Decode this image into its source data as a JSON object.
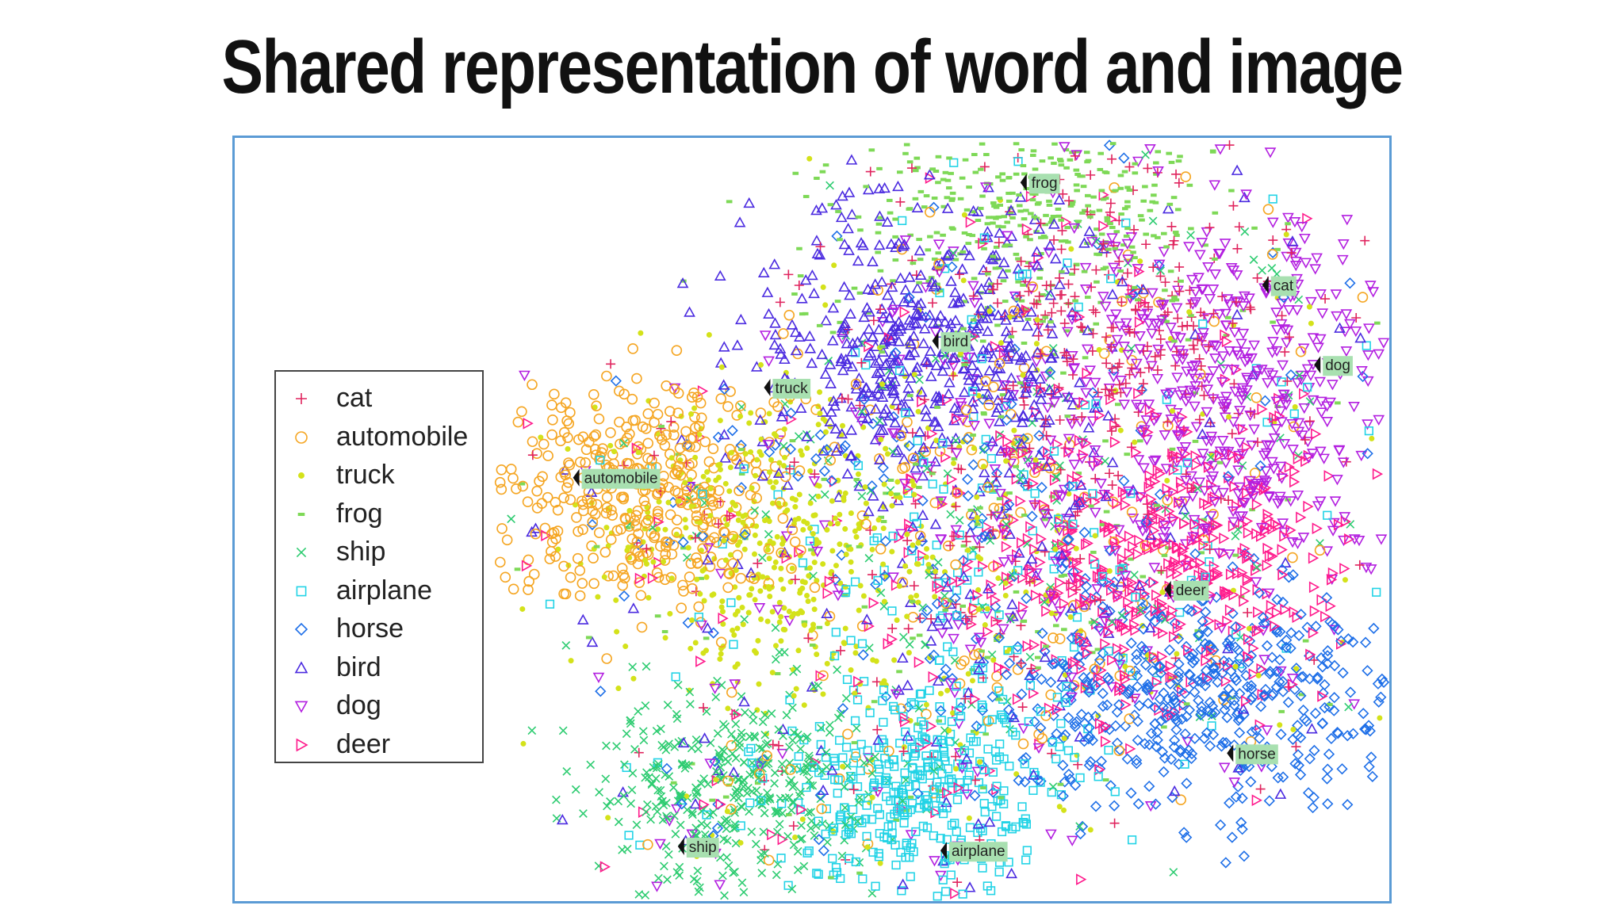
{
  "title": "Shared representation of word and image",
  "chart_data": {
    "type": "scatter",
    "title": "",
    "xlabel": "",
    "ylabel": "",
    "grid": false,
    "legend_position": "left",
    "series": [
      {
        "name": "cat",
        "marker": "plus",
        "color": "#e0245e"
      },
      {
        "name": "automobile",
        "marker": "circle",
        "color": "#f5a623"
      },
      {
        "name": "truck",
        "marker": "dot",
        "color": "#d4e21a"
      },
      {
        "name": "frog",
        "marker": "dash",
        "color": "#7ed957"
      },
      {
        "name": "ship",
        "marker": "x",
        "color": "#2ecc71"
      },
      {
        "name": "airplane",
        "marker": "square",
        "color": "#22d3e6"
      },
      {
        "name": "horse",
        "marker": "diamond",
        "color": "#1e6fe8"
      },
      {
        "name": "bird",
        "marker": "triangle-up",
        "color": "#4b2be0"
      },
      {
        "name": "dog",
        "marker": "triangle-down",
        "color": "#b31fe0"
      },
      {
        "name": "deer",
        "marker": "triangle-right",
        "color": "#ff1a8c"
      }
    ],
    "clusters": [
      {
        "name": "frog",
        "label": "frog",
        "center": [
          985,
          200
        ],
        "spread": [
          95,
          60
        ],
        "n": 520
      },
      {
        "name": "bird",
        "label": "bird",
        "center": [
          880,
          325
        ],
        "spread": [
          80,
          65
        ],
        "n": 520
      },
      {
        "name": "cat",
        "label": "cat",
        "center": [
          1080,
          300
        ],
        "spread": [
          85,
          70
        ],
        "n": 260
      },
      {
        "name": "dog",
        "label": "dog",
        "center": [
          1180,
          380
        ],
        "spread": [
          100,
          90
        ],
        "n": 620
      },
      {
        "name": "deer",
        "label": "deer",
        "center": [
          1120,
          540
        ],
        "spread": [
          90,
          70
        ],
        "n": 520
      },
      {
        "name": "horse",
        "label": "horse",
        "center": [
          1150,
          670
        ],
        "spread": [
          95,
          55
        ],
        "n": 560
      },
      {
        "name": "automobile",
        "label": "automobile",
        "center": [
          620,
          480
        ],
        "spread": [
          70,
          55
        ],
        "n": 480
      },
      {
        "name": "truck",
        "label": "truck",
        "center": [
          740,
          520
        ],
        "spread": [
          80,
          75
        ],
        "n": 520
      },
      {
        "name": "ship",
        "label": "ship",
        "center": [
          700,
          760
        ],
        "spread": [
          70,
          50
        ],
        "n": 480
      },
      {
        "name": "airplane",
        "label": "airplane",
        "center": [
          880,
          760
        ],
        "spread": [
          60,
          55
        ],
        "n": 440
      }
    ],
    "mixed_region": {
      "center": [
        945,
        520
      ],
      "spread": [
        90,
        110
      ],
      "n": 900
    },
    "annotations": [
      {
        "text": "frog",
        "x": 985,
        "y": 174
      },
      {
        "text": "cat",
        "x": 1218,
        "y": 273
      },
      {
        "text": "bird",
        "x": 900,
        "y": 327
      },
      {
        "text": "dog",
        "x": 1268,
        "y": 350
      },
      {
        "text": "truck",
        "x": 738,
        "y": 372
      },
      {
        "text": "automobile",
        "x": 554,
        "y": 459
      },
      {
        "text": "deer",
        "x": 1124,
        "y": 567
      },
      {
        "text": "horse",
        "x": 1184,
        "y": 725
      },
      {
        "text": "ship",
        "x": 655,
        "y": 815
      },
      {
        "text": "airplane",
        "x": 908,
        "y": 819
      }
    ]
  }
}
